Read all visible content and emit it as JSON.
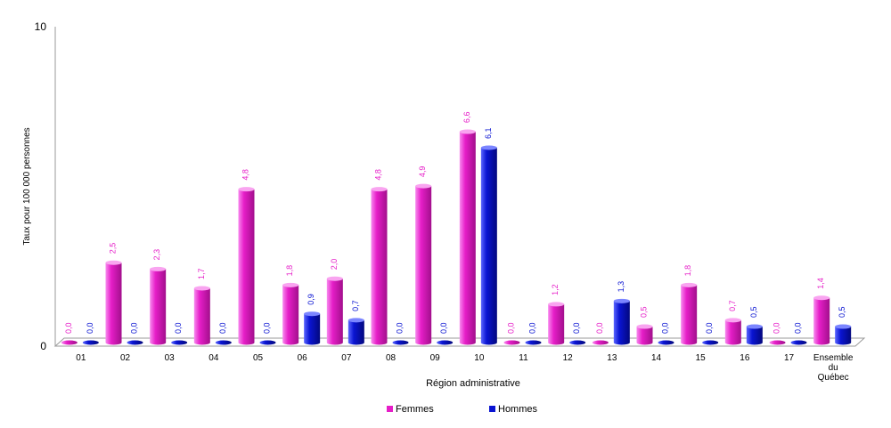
{
  "chart_data": {
    "type": "bar",
    "xlabel": "Région administrative",
    "ylabel": "Taux pour 100 000 personnes",
    "ylim": [
      0,
      10
    ],
    "y_ticks": [
      "0",
      "10"
    ],
    "grid": false,
    "legend_placement": "bottom",
    "categories": [
      "01",
      "02",
      "03",
      "04",
      "05",
      "06",
      "07",
      "08",
      "09",
      "10",
      "11",
      "12",
      "13",
      "14",
      "15",
      "16",
      "17",
      [
        "Ensemble",
        "du",
        "Québec"
      ]
    ],
    "series": [
      {
        "name": "Femmes",
        "color": "#e61ec8",
        "values": [
          0.0,
          2.5,
          2.3,
          1.7,
          4.8,
          1.8,
          2.0,
          4.8,
          4.9,
          6.6,
          0.0,
          1.2,
          0.0,
          0.5,
          1.8,
          0.7,
          0.0,
          1.4
        ],
        "labels": [
          "0,0",
          "2,5",
          "2,3",
          "1,7",
          "4,8",
          "1,8",
          "2,0",
          "4,8",
          "4,9",
          "6,6",
          "0,0",
          "1,2",
          "0,0",
          "0,5",
          "1,8",
          "0,7",
          "0,0",
          "1,4"
        ]
      },
      {
        "name": "Hommes",
        "color": "#0a14d2",
        "values": [
          0.0,
          0.0,
          0.0,
          0.0,
          0.0,
          0.9,
          0.7,
          0.0,
          0.0,
          6.1,
          0.0,
          0.0,
          1.3,
          0.0,
          0.0,
          0.5,
          0.0,
          0.5
        ],
        "labels": [
          "0,0",
          "0,0",
          "0,0",
          "0,0",
          "0,0",
          "0,9",
          "0,7",
          "0,0",
          "0,0",
          "6,1",
          "0,0",
          "0,0",
          "1,3",
          "0,0",
          "0,0",
          "0,5",
          "0,0",
          "0,5"
        ]
      }
    ]
  }
}
